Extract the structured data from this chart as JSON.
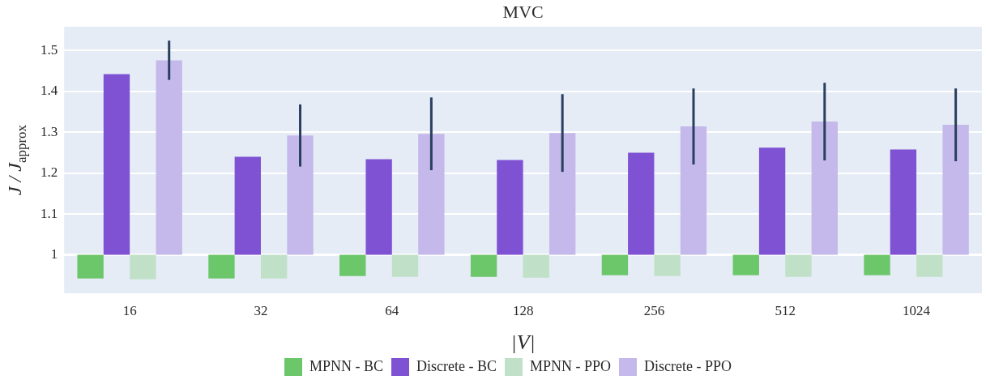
{
  "chart_data": {
    "type": "bar",
    "title": "MVC",
    "xlabel": "|V|",
    "ylabel": "J / J$_{approx}$",
    "categories": [
      "16",
      "32",
      "64",
      "128",
      "256",
      "512",
      "1024"
    ],
    "series": [
      {
        "name": "MPNN - BC",
        "color": "#6cc66a",
        "base": [
          1,
          1,
          1,
          1,
          1,
          1,
          1
        ],
        "values": [
          -0.058,
          -0.058,
          -0.052,
          -0.054,
          -0.05,
          -0.05,
          -0.05
        ]
      },
      {
        "name": "Discrete - BC",
        "color": "#7f52d4",
        "base": [
          1,
          1,
          1,
          1,
          1,
          1,
          1
        ],
        "values": [
          0.442,
          0.24,
          0.234,
          0.232,
          0.25,
          0.262,
          0.258
        ]
      },
      {
        "name": "MPNN - PPO",
        "color": "#c0e0c8",
        "base": [
          1,
          1,
          1,
          1,
          1,
          1,
          1
        ],
        "values": [
          -0.06,
          -0.058,
          -0.054,
          -0.056,
          -0.052,
          -0.054,
          -0.054
        ]
      },
      {
        "name": "Discrete - PPO",
        "color": "#c4b9ea",
        "base": [
          1,
          1,
          1,
          1,
          1,
          1,
          1
        ],
        "values": [
          0.476,
          0.292,
          0.296,
          0.298,
          0.314,
          0.326,
          0.318
        ],
        "errors": [
          0.048,
          0.076,
          0.089,
          0.095,
          0.093,
          0.095,
          0.089
        ]
      }
    ],
    "ylim": [
      0.906,
      1.558
    ],
    "yticks": [
      1,
      1.1,
      1.2,
      1.3,
      1.4,
      1.5
    ],
    "grid": "y",
    "legend": "bottom",
    "ref_lines": [
      {
        "axis": "y",
        "value": 1,
        "color": "#ffffff"
      }
    ]
  }
}
